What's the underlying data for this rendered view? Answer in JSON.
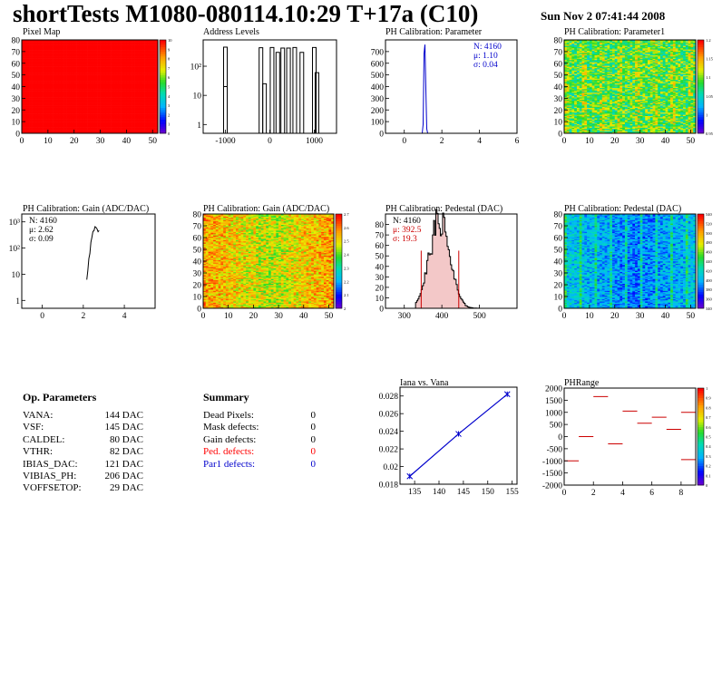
{
  "header": {
    "title": "shortTests M1080-080114.10:29 T+17a (C10)",
    "date": "Sun Nov  2 07:41:44 2008"
  },
  "chart_data": [
    {
      "id": "pixel-map",
      "type": "heatmap",
      "title": "Pixel Map",
      "xlim": [
        0,
        52
      ],
      "ylim": [
        0,
        80
      ],
      "xticks": [
        0,
        10,
        20,
        30,
        40,
        50
      ],
      "yticks": [
        0,
        10,
        20,
        30,
        40,
        50,
        60,
        70,
        80
      ],
      "pattern": "uniform",
      "fill_level": 1.0,
      "palette_range": [
        0,
        10
      ],
      "palette_ticks": [
        "0",
        "1",
        "2",
        "3",
        "4",
        "5",
        "6",
        "7",
        "8",
        "9",
        "10"
      ]
    },
    {
      "id": "address-levels",
      "type": "histogram",
      "title": "Address Levels",
      "xlim": [
        -1500,
        1500
      ],
      "ylim": [
        0.5,
        800
      ],
      "yscale": "log",
      "xticks": [
        -1000,
        0,
        1000
      ],
      "yticks": [
        {
          "v": 1,
          "t": "1"
        },
        {
          "v": 10,
          "t": "10"
        },
        {
          "v": 100,
          "t": "10²"
        }
      ],
      "peaks": [
        {
          "x": -1000,
          "h": 450
        },
        {
          "x": -1000,
          "h": 20
        },
        {
          "x": -200,
          "h": 430
        },
        {
          "x": -120,
          "h": 25
        },
        {
          "x": 50,
          "h": 440
        },
        {
          "x": 180,
          "h": 300
        },
        {
          "x": 290,
          "h": 420
        },
        {
          "x": 420,
          "h": 420
        },
        {
          "x": 560,
          "h": 440
        },
        {
          "x": 720,
          "h": 300
        },
        {
          "x": 1000,
          "h": 440
        },
        {
          "x": 1060,
          "h": 60
        }
      ]
    },
    {
      "id": "ph-cal-parameter",
      "type": "histogram",
      "title": "PH Calibration: Parameter",
      "xlim": [
        -1,
        6
      ],
      "ylim": [
        0,
        800
      ],
      "xticks": [
        0,
        2,
        4,
        6
      ],
      "yticks": [
        0,
        100,
        200,
        300,
        400,
        500,
        600,
        700
      ],
      "color": "#0000cc",
      "peak_x": 1.1,
      "peak_h": 760,
      "stats": [
        "N: 4160",
        "μ: 1.10",
        "σ: 0.04"
      ]
    },
    {
      "id": "ph-cal-parameter1",
      "type": "heatmap",
      "title": "PH Calibration: Parameter1",
      "xlim": [
        0,
        52
      ],
      "ylim": [
        0,
        80
      ],
      "xticks": [
        0,
        10,
        20,
        30,
        40,
        50
      ],
      "yticks": [
        0,
        10,
        20,
        30,
        40,
        50,
        60,
        70,
        80
      ],
      "pattern": "noise",
      "mean_level": 0.55,
      "spread": 0.18,
      "palette_range": [
        0.95,
        1.2
      ],
      "palette_ticks": [
        "0.95",
        "",
        "1",
        "",
        "1.05",
        "",
        "1.1",
        "",
        "1.15",
        "",
        "1.2"
      ]
    },
    {
      "id": "ph-cal-gain-hist",
      "type": "histogram",
      "title": "PH Calibration: Gain (ADC/DAC)",
      "xlim": [
        -1,
        5.5
      ],
      "ylim": [
        0.5,
        2000
      ],
      "yscale": "log",
      "xticks": [
        0,
        2,
        4
      ],
      "yticks": [
        {
          "v": 1,
          "t": "1"
        },
        {
          "v": 10,
          "t": "10"
        },
        {
          "v": 100,
          "t": "10²"
        },
        {
          "v": 1000,
          "t": "10³"
        }
      ],
      "peak_x": 2.62,
      "sigma": 0.09,
      "peak_h": 700,
      "stats": [
        "N: 4160",
        "μ: 2.62",
        "σ: 0.09"
      ]
    },
    {
      "id": "ph-cal-gain-map",
      "type": "heatmap",
      "title": "PH Calibration: Gain (ADC/DAC)",
      "xlim": [
        0,
        52
      ],
      "ylim": [
        0,
        80
      ],
      "xticks": [
        0,
        10,
        20,
        30,
        40,
        50
      ],
      "yticks": [
        0,
        10,
        20,
        30,
        40,
        50,
        60,
        70,
        80
      ],
      "pattern": "noise-center-low",
      "mean_level": 0.78,
      "spread": 0.15,
      "palette_range": [
        2,
        2.75
      ],
      "palette_ticks": [
        "2",
        "2.1",
        "2.2",
        "2.3",
        "2.4",
        "2.5",
        "2.6",
        "2.7"
      ]
    },
    {
      "id": "ph-cal-pedestal-hist",
      "type": "histogram",
      "title": "PH Calibration: Pedestal (DAC)",
      "xlim": [
        250,
        600
      ],
      "ylim": [
        0,
        90
      ],
      "xticks": [
        300,
        400,
        500
      ],
      "yticks": [
        0,
        10,
        20,
        30,
        40,
        50,
        60,
        70,
        80
      ],
      "peak_x": 392.5,
      "sigma": 19.3,
      "peak_h": 86,
      "cut_lines": [
        345,
        445
      ],
      "cut_h": 55,
      "stats": [
        "N: 4160",
        "μ: 392.5",
        "σ: 19.3"
      ]
    },
    {
      "id": "ph-cal-pedestal-map",
      "type": "heatmap",
      "title": "PH Calibration: Pedestal (DAC)",
      "xlim": [
        0,
        52
      ],
      "ylim": [
        0,
        80
      ],
      "xticks": [
        0,
        10,
        20,
        30,
        40,
        50
      ],
      "yticks": [
        0,
        10,
        20,
        30,
        40,
        50,
        60,
        70,
        80
      ],
      "pattern": "noise-stripes",
      "mean_level": 0.28,
      "spread": 0.12,
      "palette_range": [
        340,
        540
      ],
      "palette_ticks": [
        "340",
        "360",
        "380",
        "400",
        "420",
        "440",
        "460",
        "480",
        "500",
        "520",
        "540"
      ]
    },
    {
      "id": "iana-vs-vana",
      "type": "line",
      "title": "Iana vs. Vana",
      "xlim": [
        132,
        156
      ],
      "ylim": [
        0.018,
        0.029
      ],
      "xticks": [
        135,
        140,
        145,
        150,
        155
      ],
      "yticks": [
        0.018,
        0.02,
        0.022,
        0.024,
        0.026,
        0.028
      ],
      "ytick_labels": [
        "0.018",
        "0.02",
        "0.022",
        "0.024",
        "0.026",
        "0.028"
      ],
      "points": [
        {
          "x": 134,
          "y": 0.0189
        },
        {
          "x": 144,
          "y": 0.0237
        },
        {
          "x": 154,
          "y": 0.0282
        }
      ],
      "color": "#0000cc"
    },
    {
      "id": "phrange",
      "type": "scatter",
      "title": "PHRange",
      "xlim": [
        0,
        9
      ],
      "ylim": [
        -2000,
        2000
      ],
      "xticks": [
        0,
        2,
        4,
        6,
        8
      ],
      "yticks": [
        -2000,
        -1500,
        -1000,
        -500,
        0,
        500,
        1000,
        1500,
        2000
      ],
      "segments": [
        {
          "x": 0.5,
          "y": -1000
        },
        {
          "x": 1.5,
          "y": 0
        },
        {
          "x": 2.5,
          "y": 1650
        },
        {
          "x": 3.5,
          "y": -300
        },
        {
          "x": 4.5,
          "y": 1050
        },
        {
          "x": 5.5,
          "y": 550
        },
        {
          "x": 6.5,
          "y": 800
        },
        {
          "x": 7.5,
          "y": 300
        },
        {
          "x": 8.5,
          "y": -950
        },
        {
          "x": 8.5,
          "y": 1000
        }
      ],
      "color": "#cc0000",
      "palette_range": [
        0,
        1
      ],
      "palette_ticks": [
        "0",
        "0.1",
        "0.2",
        "0.3",
        "0.4",
        "0.5",
        "0.6",
        "0.7",
        "0.8",
        "0.9",
        "1"
      ]
    }
  ],
  "op_parameters": {
    "heading": "Op. Parameters",
    "rows": [
      {
        "name": "VANA:",
        "value": "144 DAC"
      },
      {
        "name": "VSF:",
        "value": "145 DAC"
      },
      {
        "name": "CALDEL:",
        "value": "80 DAC"
      },
      {
        "name": "VTHR:",
        "value": "82 DAC"
      },
      {
        "name": "IBIAS_DAC:",
        "value": "121 DAC"
      },
      {
        "name": "VIBIAS_PH:",
        "value": "206 DAC"
      },
      {
        "name": "VOFFSETOP:",
        "value": "29 DAC"
      }
    ]
  },
  "summary": {
    "heading": "Summary",
    "rows": [
      {
        "name": "Dead Pixels:",
        "value": "0",
        "color": "#000000"
      },
      {
        "name": "Mask defects:",
        "value": "0",
        "color": "#000000"
      },
      {
        "name": "Gain defects:",
        "value": "0",
        "color": "#000000"
      },
      {
        "name": "Ped. defects:",
        "value": "0",
        "color": "#ff0000"
      },
      {
        "name": "Par1 defects:",
        "value": "0",
        "color": "#0000cc"
      }
    ]
  }
}
